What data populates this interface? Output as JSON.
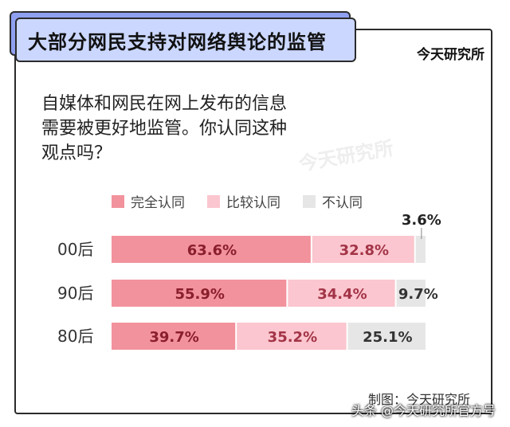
{
  "header": {
    "title": "大部分网民支持对网络舆论的监管",
    "brand": "今天研究所"
  },
  "question": {
    "lines": [
      "自媒体和网民在网上发布的信息",
      "需要被更好地监管。你认同这种",
      "观点吗？"
    ]
  },
  "watermark": "今天研究所",
  "credit": "制图：今天研究所",
  "footer": "头条 @今天研究所官方号",
  "colors": {
    "full": "#f2929c",
    "partial": "#fbc6cf",
    "none": "#e6e6e6"
  },
  "chart_data": {
    "type": "bar",
    "orientation": "horizontal",
    "stacked": true,
    "categories": [
      "00后",
      "90后",
      "80后"
    ],
    "series": [
      {
        "name": "完全认同",
        "values": [
          63.6,
          55.9,
          39.7
        ],
        "labels": [
          "63.6%",
          "55.9%",
          "39.7%"
        ]
      },
      {
        "name": "比较认同",
        "values": [
          32.8,
          34.4,
          35.2
        ],
        "labels": [
          "32.8%",
          "34.4%",
          "35.2%"
        ]
      },
      {
        "name": "不认同",
        "values": [
          3.6,
          9.7,
          25.1
        ],
        "labels": [
          "3.6%",
          "9.7%",
          "25.1%"
        ]
      }
    ],
    "xlim": [
      0,
      100
    ],
    "legend": "top"
  }
}
